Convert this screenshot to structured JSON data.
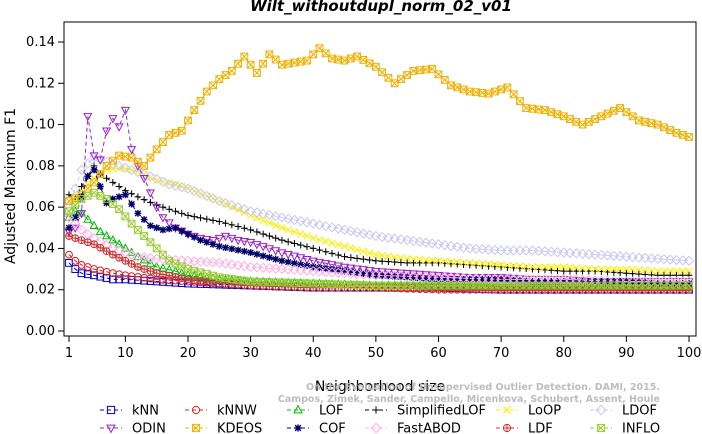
{
  "chart_data": {
    "type": "line",
    "title": "Wilt_withoutdupl_norm_02_v01",
    "xlabel": "Neighborhood size",
    "ylabel": "Adjusted Maximum F1",
    "xlim": [
      1,
      100
    ],
    "ylim": [
      0,
      0.145
    ],
    "xticks": [
      1,
      10,
      20,
      30,
      40,
      50,
      60,
      70,
      80,
      90,
      100
    ],
    "yticks": [
      0.0,
      0.02,
      0.04,
      0.06,
      0.08,
      0.1,
      0.12,
      0.14
    ],
    "ytick_labels": [
      "0.00",
      "0.02",
      "0.04",
      "0.06",
      "0.08",
      "0.10",
      "0.12",
      "0.14"
    ],
    "grid": false,
    "legend_position": "bottom",
    "watermark": [
      "Campos, Zimek, Sander, Campello, Micenkova, Schubert, Assent, Houle",
      "On the Evaluation of Unsupervised Outlier Detection. DAMI, 2015."
    ],
    "series": [
      {
        "name": "kNN",
        "color": "#0000cc",
        "marker": "square",
        "points": [
          [
            1,
            0.033
          ],
          [
            2,
            0.03
          ],
          [
            3,
            0.028
          ],
          [
            5,
            0.027
          ],
          [
            8,
            0.025
          ],
          [
            10,
            0.025
          ],
          [
            15,
            0.024
          ],
          [
            20,
            0.023
          ],
          [
            30,
            0.022
          ],
          [
            40,
            0.021
          ],
          [
            50,
            0.021
          ],
          [
            60,
            0.021
          ],
          [
            70,
            0.02
          ],
          [
            80,
            0.02
          ],
          [
            90,
            0.02
          ],
          [
            100,
            0.02
          ]
        ]
      },
      {
        "name": "kNNW",
        "color": "#dd2020",
        "marker": "circle",
        "points": [
          [
            1,
            0.037
          ],
          [
            2,
            0.034
          ],
          [
            3,
            0.032
          ],
          [
            5,
            0.03
          ],
          [
            8,
            0.028
          ],
          [
            10,
            0.027
          ],
          [
            15,
            0.025
          ],
          [
            20,
            0.024
          ],
          [
            30,
            0.022
          ],
          [
            40,
            0.021
          ],
          [
            50,
            0.021
          ],
          [
            60,
            0.021
          ],
          [
            70,
            0.021
          ],
          [
            80,
            0.021
          ],
          [
            90,
            0.021
          ],
          [
            100,
            0.021
          ]
        ]
      },
      {
        "name": "LOF",
        "color": "#00bb00",
        "marker": "triangle-up",
        "points": [
          [
            1,
            0.055
          ],
          [
            2,
            0.058
          ],
          [
            3,
            0.057
          ],
          [
            4,
            0.054
          ],
          [
            5,
            0.051
          ],
          [
            6,
            0.048
          ],
          [
            8,
            0.044
          ],
          [
            10,
            0.04
          ],
          [
            12,
            0.036
          ],
          [
            15,
            0.031
          ],
          [
            18,
            0.029
          ],
          [
            20,
            0.027
          ],
          [
            25,
            0.025
          ],
          [
            30,
            0.024
          ],
          [
            40,
            0.023
          ],
          [
            50,
            0.022
          ],
          [
            60,
            0.022
          ],
          [
            70,
            0.022
          ],
          [
            80,
            0.022
          ],
          [
            90,
            0.022
          ],
          [
            100,
            0.022
          ]
        ]
      },
      {
        "name": "SimplifiedLOF",
        "color": "#000000",
        "marker": "plus",
        "points": [
          [
            1,
            0.066
          ],
          [
            2,
            0.064
          ],
          [
            3,
            0.07
          ],
          [
            4,
            0.075
          ],
          [
            5,
            0.08
          ],
          [
            6,
            0.076
          ],
          [
            8,
            0.072
          ],
          [
            10,
            0.068
          ],
          [
            12,
            0.065
          ],
          [
            15,
            0.061
          ],
          [
            18,
            0.058
          ],
          [
            20,
            0.056
          ],
          [
            25,
            0.053
          ],
          [
            30,
            0.049
          ],
          [
            35,
            0.044
          ],
          [
            40,
            0.04
          ],
          [
            45,
            0.036
          ],
          [
            50,
            0.034
          ],
          [
            55,
            0.033
          ],
          [
            60,
            0.033
          ],
          [
            65,
            0.032
          ],
          [
            70,
            0.031
          ],
          [
            75,
            0.03
          ],
          [
            80,
            0.029
          ],
          [
            85,
            0.029
          ],
          [
            90,
            0.028
          ],
          [
            95,
            0.027
          ],
          [
            100,
            0.027
          ]
        ]
      },
      {
        "name": "LoOP",
        "color": "#ffee00",
        "marker": "x",
        "points": [
          [
            1,
            0.058
          ],
          [
            3,
            0.068
          ],
          [
            5,
            0.074
          ],
          [
            7,
            0.078
          ],
          [
            9,
            0.079
          ],
          [
            11,
            0.078
          ],
          [
            13,
            0.076
          ],
          [
            15,
            0.073
          ],
          [
            18,
            0.071
          ],
          [
            20,
            0.069
          ],
          [
            25,
            0.063
          ],
          [
            30,
            0.056
          ],
          [
            35,
            0.05
          ],
          [
            40,
            0.045
          ],
          [
            45,
            0.041
          ],
          [
            50,
            0.037
          ],
          [
            55,
            0.035
          ],
          [
            60,
            0.034
          ],
          [
            65,
            0.033
          ],
          [
            70,
            0.032
          ],
          [
            75,
            0.031
          ],
          [
            80,
            0.031
          ],
          [
            85,
            0.03
          ],
          [
            90,
            0.03
          ],
          [
            95,
            0.029
          ],
          [
            100,
            0.029
          ]
        ]
      },
      {
        "name": "LDOF",
        "color": "#c8c8f4",
        "marker": "diamond",
        "points": [
          [
            1,
            0.06
          ],
          [
            3,
            0.078
          ],
          [
            5,
            0.084
          ],
          [
            7,
            0.082
          ],
          [
            9,
            0.08
          ],
          [
            11,
            0.078
          ],
          [
            14,
            0.075
          ],
          [
            17,
            0.071
          ],
          [
            20,
            0.069
          ],
          [
            25,
            0.063
          ],
          [
            30,
            0.058
          ],
          [
            35,
            0.055
          ],
          [
            40,
            0.052
          ],
          [
            45,
            0.049
          ],
          [
            50,
            0.046
          ],
          [
            55,
            0.044
          ],
          [
            60,
            0.042
          ],
          [
            65,
            0.04
          ],
          [
            70,
            0.039
          ],
          [
            75,
            0.039
          ],
          [
            80,
            0.038
          ],
          [
            85,
            0.037
          ],
          [
            90,
            0.036
          ],
          [
            95,
            0.035
          ],
          [
            100,
            0.034
          ]
        ]
      },
      {
        "name": "ODIN",
        "color": "#9922cc",
        "marker": "triangle-down",
        "points": [
          [
            1,
            0.048
          ],
          [
            2,
            0.05
          ],
          [
            3,
            0.057
          ],
          [
            4,
            0.104
          ],
          [
            5,
            0.085
          ],
          [
            6,
            0.083
          ],
          [
            7,
            0.097
          ],
          [
            8,
            0.103
          ],
          [
            9,
            0.099
          ],
          [
            10,
            0.107
          ],
          [
            11,
            0.088
          ],
          [
            12,
            0.08
          ],
          [
            13,
            0.074
          ],
          [
            14,
            0.067
          ],
          [
            15,
            0.06
          ],
          [
            16,
            0.055
          ],
          [
            18,
            0.05
          ],
          [
            20,
            0.047
          ],
          [
            22,
            0.045
          ],
          [
            24,
            0.044
          ],
          [
            26,
            0.046
          ],
          [
            28,
            0.044
          ],
          [
            30,
            0.043
          ],
          [
            35,
            0.038
          ],
          [
            40,
            0.034
          ],
          [
            45,
            0.031
          ],
          [
            50,
            0.029
          ],
          [
            55,
            0.028
          ],
          [
            60,
            0.027
          ],
          [
            65,
            0.026
          ],
          [
            70,
            0.026
          ],
          [
            75,
            0.025
          ],
          [
            80,
            0.025
          ],
          [
            85,
            0.024
          ],
          [
            90,
            0.024
          ],
          [
            95,
            0.024
          ],
          [
            100,
            0.024
          ]
        ]
      },
      {
        "name": "KDEOS",
        "color": "#f0b000",
        "marker": "square-x",
        "points": [
          [
            1,
            0.063
          ],
          [
            3,
            0.066
          ],
          [
            5,
            0.072
          ],
          [
            7,
            0.08
          ],
          [
            9,
            0.085
          ],
          [
            11,
            0.084
          ],
          [
            13,
            0.08
          ],
          [
            15,
            0.088
          ],
          [
            17,
            0.095
          ],
          [
            19,
            0.097
          ],
          [
            21,
            0.107
          ],
          [
            23,
            0.116
          ],
          [
            25,
            0.122
          ],
          [
            27,
            0.126
          ],
          [
            29,
            0.133
          ],
          [
            31,
            0.125
          ],
          [
            33,
            0.134
          ],
          [
            35,
            0.129
          ],
          [
            37,
            0.13
          ],
          [
            39,
            0.131
          ],
          [
            41,
            0.137
          ],
          [
            43,
            0.132
          ],
          [
            45,
            0.131
          ],
          [
            47,
            0.133
          ],
          [
            50,
            0.128
          ],
          [
            53,
            0.12
          ],
          [
            56,
            0.126
          ],
          [
            59,
            0.127
          ],
          [
            62,
            0.119
          ],
          [
            65,
            0.116
          ],
          [
            68,
            0.115
          ],
          [
            71,
            0.118
          ],
          [
            74,
            0.108
          ],
          [
            77,
            0.107
          ],
          [
            80,
            0.104
          ],
          [
            83,
            0.1
          ],
          [
            86,
            0.104
          ],
          [
            89,
            0.108
          ],
          [
            92,
            0.102
          ],
          [
            95,
            0.1
          ],
          [
            98,
            0.096
          ],
          [
            100,
            0.094
          ]
        ]
      },
      {
        "name": "COF",
        "color": "#000066",
        "marker": "asterisk",
        "points": [
          [
            1,
            0.05
          ],
          [
            2,
            0.055
          ],
          [
            3,
            0.065
          ],
          [
            4,
            0.075
          ],
          [
            5,
            0.078
          ],
          [
            6,
            0.07
          ],
          [
            7,
            0.062
          ],
          [
            8,
            0.064
          ],
          [
            10,
            0.066
          ],
          [
            12,
            0.057
          ],
          [
            14,
            0.051
          ],
          [
            16,
            0.049
          ],
          [
            18,
            0.05
          ],
          [
            20,
            0.047
          ],
          [
            22,
            0.044
          ],
          [
            25,
            0.041
          ],
          [
            30,
            0.038
          ],
          [
            35,
            0.034
          ],
          [
            40,
            0.031
          ],
          [
            45,
            0.029
          ],
          [
            50,
            0.027
          ],
          [
            55,
            0.026
          ],
          [
            60,
            0.025
          ],
          [
            65,
            0.025
          ],
          [
            70,
            0.025
          ],
          [
            75,
            0.024
          ],
          [
            80,
            0.024
          ],
          [
            85,
            0.024
          ],
          [
            90,
            0.024
          ],
          [
            95,
            0.023
          ],
          [
            100,
            0.023
          ]
        ]
      },
      {
        "name": "FastABOD",
        "color": "#ffb0e8",
        "marker": "diamond",
        "points": [
          [
            1,
            0.055
          ],
          [
            2,
            0.052
          ],
          [
            3,
            0.049
          ],
          [
            5,
            0.045
          ],
          [
            8,
            0.04
          ],
          [
            10,
            0.038
          ],
          [
            12,
            0.036
          ],
          [
            15,
            0.035
          ],
          [
            20,
            0.034
          ],
          [
            25,
            0.033
          ],
          [
            30,
            0.031
          ],
          [
            40,
            0.029
          ],
          [
            50,
            0.027
          ],
          [
            60,
            0.026
          ],
          [
            70,
            0.025
          ],
          [
            80,
            0.025
          ],
          [
            90,
            0.024
          ],
          [
            100,
            0.024
          ]
        ]
      },
      {
        "name": "LDF",
        "color": "#cc3333",
        "marker": "circle-plus",
        "points": [
          [
            1,
            0.046
          ],
          [
            3,
            0.044
          ],
          [
            5,
            0.042
          ],
          [
            8,
            0.037
          ],
          [
            10,
            0.034
          ],
          [
            12,
            0.031
          ],
          [
            15,
            0.028
          ],
          [
            20,
            0.025
          ],
          [
            25,
            0.023
          ],
          [
            30,
            0.022
          ],
          [
            40,
            0.021
          ],
          [
            50,
            0.021
          ],
          [
            60,
            0.02
          ],
          [
            70,
            0.02
          ],
          [
            80,
            0.02
          ],
          [
            90,
            0.02
          ],
          [
            100,
            0.02
          ]
        ]
      },
      {
        "name": "INFLO",
        "color": "#99cc33",
        "marker": "square-x",
        "points": [
          [
            1,
            0.058
          ],
          [
            3,
            0.064
          ],
          [
            5,
            0.067
          ],
          [
            7,
            0.064
          ],
          [
            9,
            0.059
          ],
          [
            11,
            0.052
          ],
          [
            13,
            0.046
          ],
          [
            15,
            0.04
          ],
          [
            17,
            0.034
          ],
          [
            20,
            0.03
          ],
          [
            25,
            0.026
          ],
          [
            30,
            0.024
          ],
          [
            40,
            0.023
          ],
          [
            50,
            0.022
          ],
          [
            60,
            0.022
          ],
          [
            70,
            0.022
          ],
          [
            80,
            0.022
          ],
          [
            90,
            0.022
          ],
          [
            100,
            0.022
          ]
        ]
      }
    ]
  }
}
